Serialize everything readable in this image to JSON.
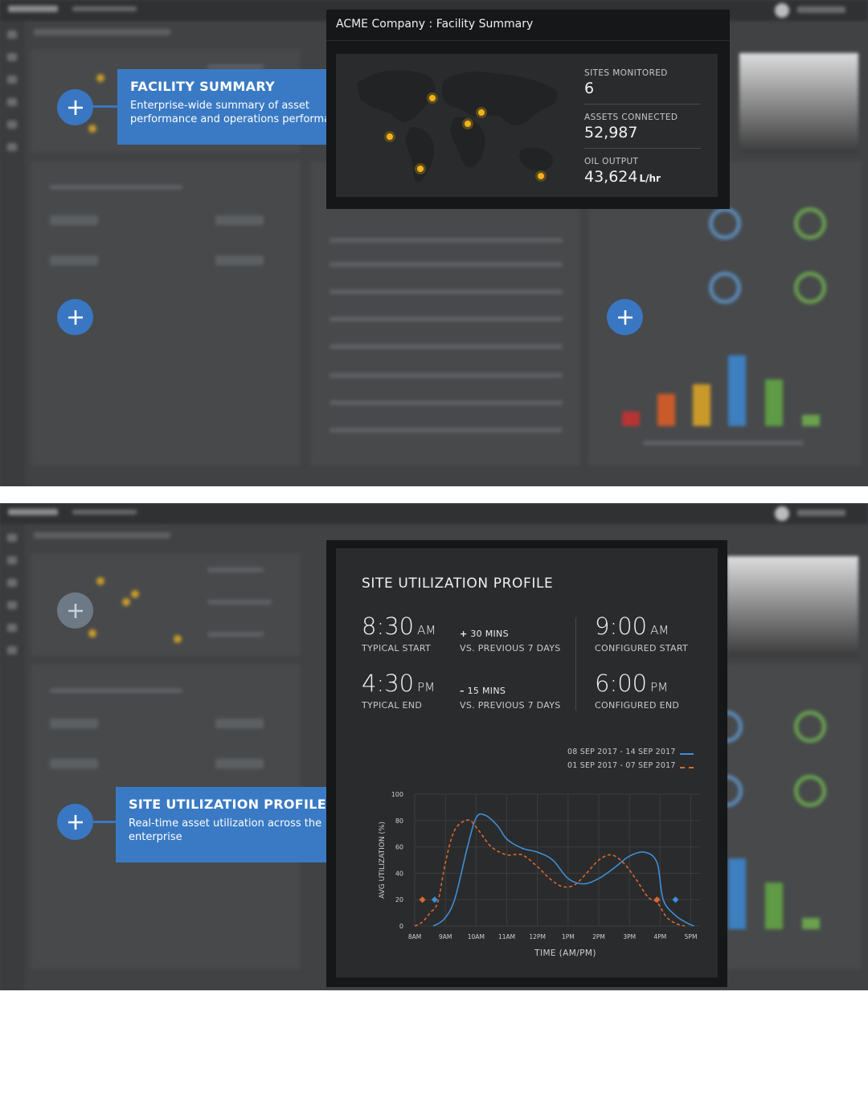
{
  "facility_summary": {
    "window_title": "ACME Company : Facility Summary",
    "stats": [
      {
        "label": "SITES MONITORED",
        "value": "6",
        "unit": ""
      },
      {
        "label": "ASSETS CONNECTED",
        "value": "52,987",
        "unit": ""
      },
      {
        "label": "OIL OUTPUT",
        "value": "43,624",
        "unit": "L/hr"
      }
    ],
    "callout": {
      "title": "FACILITY SUMMARY",
      "description": "Enterprise-wide summary of asset performance and operations performance"
    }
  },
  "site_utilization": {
    "title": "SITE UTILIZATION PROFILE",
    "typical_start": {
      "time": "8:30",
      "ampm": "AM",
      "label": "TYPICAL START"
    },
    "start_delta": {
      "sign": "+",
      "value": "30 MINS",
      "label": "VS. PREVIOUS 7 DAYS"
    },
    "configured_start": {
      "time": "9:00",
      "ampm": "AM",
      "label": "CONFIGURED START"
    },
    "typical_end": {
      "time": "4:30",
      "ampm": "PM",
      "label": "TYPICAL END"
    },
    "end_delta": {
      "sign": "–",
      "value": "15 MINS",
      "label": "VS. PREVIOUS 7 DAYS"
    },
    "configured_end": {
      "time": "6:00",
      "ampm": "PM",
      "label": "CONFIGURED END"
    },
    "callout": {
      "title": "SITE UTILIZATION PROFILE",
      "description": "Real-time asset utilization across the enterprise"
    }
  },
  "colors": {
    "accent_blue": "#3a7ac4",
    "series_current": "#3d8fd6",
    "series_previous": "#d9692e",
    "marker": "#f2b21c"
  },
  "chart_data": {
    "type": "line",
    "xlabel": "TIME (AM/PM)",
    "ylabel": "AVG UTILIZATION (%)",
    "x_ticks": [
      "8AM",
      "9AM",
      "10AM",
      "11AM",
      "12PM",
      "1PM",
      "2PM",
      "3PM",
      "4PM",
      "5PM"
    ],
    "y_ticks": [
      0,
      20,
      40,
      60,
      80,
      100
    ],
    "ylim": [
      0,
      100
    ],
    "xlim": [
      8,
      17.3
    ],
    "grid": true,
    "legend_position": "top-right",
    "series": [
      {
        "name": "08 SEP 2017  -  14 SEP 2017",
        "style": "solid",
        "color": "#3d8fd6",
        "x": [
          8.6,
          8.95,
          9.3,
          9.7,
          10.0,
          10.3,
          10.7,
          11.0,
          11.5,
          12.0,
          12.5,
          13.0,
          13.5,
          14.0,
          14.5,
          15.0,
          15.5,
          15.9,
          16.1,
          16.5,
          16.9,
          17.1
        ],
        "y": [
          0,
          5,
          20,
          58,
          82,
          84,
          76,
          66,
          59,
          56,
          50,
          36,
          32,
          36,
          44,
          53,
          56,
          48,
          20,
          8,
          2,
          0
        ]
      },
      {
        "name": "01 SEP 2017  -  07 SEP 2017",
        "style": "dashed",
        "color": "#d9692e",
        "x": [
          8.0,
          8.25,
          8.5,
          8.75,
          9.0,
          9.25,
          9.5,
          9.8,
          10.1,
          10.5,
          11.0,
          11.5,
          12.0,
          12.4,
          12.8,
          13.2,
          13.6,
          14.0,
          14.4,
          14.8,
          15.2,
          15.6,
          15.9,
          16.2,
          16.5,
          16.8
        ],
        "y": [
          0,
          3,
          10,
          18,
          48,
          70,
          78,
          80,
          72,
          60,
          54,
          54,
          45,
          36,
          30,
          31,
          40,
          50,
          54,
          48,
          36,
          22,
          18,
          7,
          2,
          0
        ]
      }
    ],
    "markers": [
      {
        "series": 0,
        "x": 8.65,
        "y": 20
      },
      {
        "series": 0,
        "x": 16.5,
        "y": 20
      },
      {
        "series": 1,
        "x": 8.25,
        "y": 20
      },
      {
        "series": 1,
        "x": 15.9,
        "y": 20
      }
    ]
  }
}
